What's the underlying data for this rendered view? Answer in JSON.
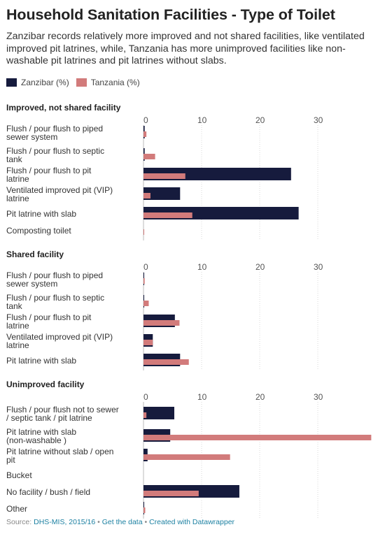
{
  "title": "Household Sanitation Facilities - Type of Toilet",
  "description": "Zanzibar records relatively more improved and not shared facilities, like ventilated improved pit latrines, while, Tanzania has more unimproved facilities like non-washable pit latrines and pit latrines without slabs.",
  "legend": [
    {
      "label": "Zanzibar (%)",
      "color": "#161b3d"
    },
    {
      "label": "Tanzania (%)",
      "color": "#d27b7b"
    }
  ],
  "footer": {
    "source_label": "Source: ",
    "source": "DHS-MIS, 2015/16",
    "sep1": " • ",
    "get_data": "Get the data",
    "sep2": " • ",
    "created": "Created with Datawrapper"
  },
  "chart_data": [
    {
      "type": "bar",
      "orientation": "horizontal",
      "title": "Improved, not shared facility",
      "ticks": [
        0,
        10,
        20,
        30
      ],
      "xlim": [
        0,
        39
      ],
      "categories": [
        "Flush / pour flush to piped sewer system",
        "Flush / pour flush to septic tank",
        "Flush / pour flush to pit latrine",
        "Ventilated improved pit (VIP) latrine",
        "Pit latrine with slab",
        "Composting toilet"
      ],
      "series": [
        {
          "name": "Zanzibar (%)",
          "color": "#161b3d",
          "values": [
            0.2,
            0.2,
            25.4,
            6.3,
            26.7,
            0
          ]
        },
        {
          "name": "Tanzania (%)",
          "color": "#d27b7b",
          "values": [
            0.5,
            2.0,
            7.2,
            1.2,
            8.4,
            0.1
          ]
        }
      ]
    },
    {
      "type": "bar",
      "orientation": "horizontal",
      "title": "Shared facility",
      "ticks": [
        0,
        10,
        20,
        30
      ],
      "xlim": [
        0,
        39
      ],
      "categories": [
        "Flush / pour flush to piped sewer system",
        "Flush / pour flush to septic tank",
        "Flush / pour flush to pit latrine",
        "Ventilated improved pit (VIP) latrine",
        "Pit latrine with slab"
      ],
      "series": [
        {
          "name": "Zanzibar (%)",
          "color": "#161b3d",
          "values": [
            0.1,
            0.1,
            5.4,
            1.6,
            6.3
          ]
        },
        {
          "name": "Tanzania (%)",
          "color": "#d27b7b",
          "values": [
            0.2,
            0.9,
            6.2,
            1.6,
            7.8
          ]
        }
      ]
    },
    {
      "type": "bar",
      "orientation": "horizontal",
      "title": "Unimproved facility",
      "ticks": [
        0,
        10,
        20,
        30
      ],
      "xlim": [
        0,
        39
      ],
      "categories": [
        "Flush / pour flush not to sewer / septic tank / pit latrine",
        "Pit latrine with slab (non-washable )",
        "Pit latrine without slab / open pit",
        "Bucket",
        "No facility / bush / field",
        "Other"
      ],
      "series": [
        {
          "name": "Zanzibar (%)",
          "color": "#161b3d",
          "values": [
            5.3,
            4.6,
            0.7,
            0,
            16.5,
            0.1
          ]
        },
        {
          "name": "Tanzania (%)",
          "color": "#d27b7b",
          "values": [
            0.5,
            39.2,
            14.9,
            0,
            9.5,
            0.3
          ]
        }
      ]
    }
  ]
}
